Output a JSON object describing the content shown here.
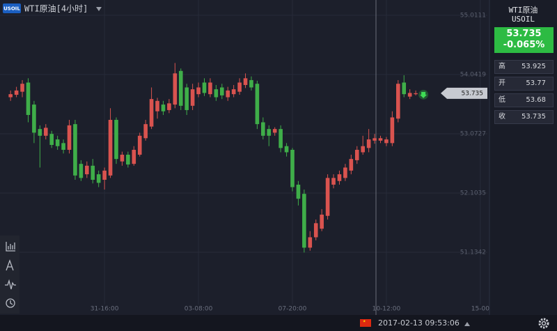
{
  "header": {
    "badge": "USOIL",
    "title": "WTI原油[4小时]"
  },
  "sidebar": {
    "name": "WTI原油",
    "symbol": "USOIL",
    "price": "53.735",
    "change": "-0.065%",
    "rows": [
      [
        "高",
        "53.925"
      ],
      [
        "开",
        "53.77"
      ],
      [
        "低",
        "53.68"
      ],
      [
        "收",
        "53.735"
      ]
    ]
  },
  "status": {
    "datetime": "2017-02-13 09:53:06"
  },
  "chart_data": {
    "type": "candlestick",
    "up_color": "#d9534f",
    "down_color": "#3fae49",
    "current_price": 53.735,
    "xlim": [
      -1.8,
      81.2
    ],
    "xticks": [
      {
        "value": 16,
        "label": "31-16:00"
      },
      {
        "value": 32,
        "label": "03-08:00"
      },
      {
        "value": 48,
        "label": "07-20:00"
      },
      {
        "value": 64,
        "label": "10-12:00"
      },
      {
        "value": 80,
        "label": "15-00"
      }
    ],
    "ylim": [
      50.28,
      55.26
    ],
    "yticks": [
      55.0111,
      54.0419,
      53.0727,
      52.1035,
      51.1342
    ],
    "grid": true,
    "x": [
      0,
      1,
      2,
      3,
      4,
      5,
      6,
      7,
      8,
      9,
      10,
      11,
      12,
      13,
      14,
      15,
      16,
      17,
      18,
      19,
      20,
      21,
      22,
      23,
      24,
      25,
      26,
      27,
      28,
      29,
      30,
      31,
      32,
      33,
      34,
      35,
      36,
      37,
      38,
      39,
      40,
      41,
      42,
      43,
      44,
      45,
      46,
      47,
      48,
      49,
      50,
      51,
      52,
      53,
      54,
      55,
      56,
      57,
      58,
      59,
      60,
      61,
      62,
      63,
      64,
      65,
      66,
      67,
      68,
      69
    ],
    "open": [
      53.67,
      53.71,
      53.76,
      53.91,
      53.55,
      53.15,
      53.04,
      53.07,
      52.98,
      52.92,
      52.81,
      53.23,
      52.58,
      52.41,
      52.55,
      52.41,
      52.32,
      52.39,
      53.3,
      52.62,
      52.73,
      52.58,
      52.73,
      53.0,
      53.19,
      53.44,
      53.55,
      53.46,
      53.55,
      54.1,
      53.83,
      53.53,
      53.72,
      53.91,
      53.72,
      53.8,
      53.83,
      53.67,
      53.72,
      53.76,
      53.87,
      53.95,
      53.89,
      53.26,
      53.15,
      53.09,
      53.15,
      52.87,
      52.81,
      52.24,
      52.09,
      51.21,
      51.38,
      51.52,
      51.73,
      52.24,
      52.3,
      52.35,
      52.47,
      52.64,
      52.77,
      52.84,
      52.96,
      52.96,
      52.92,
      52.92,
      53.32,
      53.91,
      53.68,
      53.72
    ],
    "high": [
      53.78,
      53.84,
      53.95,
      53.98,
      53.61,
      53.21,
      53.23,
      53.12,
      53.04,
      52.98,
      53.3,
      53.3,
      52.64,
      52.62,
      52.66,
      52.47,
      52.52,
      53.49,
      53.34,
      52.78,
      52.78,
      52.87,
      53.09,
      53.3,
      53.83,
      53.66,
      53.61,
      53.64,
      54.23,
      54.14,
      53.89,
      53.89,
      53.91,
      53.98,
      53.98,
      53.87,
      53.89,
      53.84,
      53.87,
      53.98,
      54.06,
      54.01,
      53.94,
      53.34,
      53.21,
      53.18,
      53.21,
      52.92,
      52.84,
      52.3,
      52.16,
      51.48,
      51.67,
      51.84,
      52.41,
      52.41,
      52.47,
      52.58,
      52.73,
      52.87,
      53.04,
      53.15,
      53.07,
      53.04,
      53.02,
      53.44,
      53.95,
      54.03,
      53.8,
      53.78
    ],
    "low": [
      53.61,
      53.67,
      53.67,
      53.26,
      52.92,
      52.52,
      52.98,
      52.84,
      52.81,
      52.75,
      52.75,
      52.32,
      52.3,
      52.35,
      52.26,
      52.2,
      52.16,
      52.35,
      52.58,
      52.55,
      52.52,
      52.55,
      52.7,
      52.96,
      53.15,
      53.32,
      53.38,
      53.41,
      53.49,
      53.46,
      53.38,
      53.46,
      53.67,
      53.69,
      53.67,
      53.61,
      53.64,
      53.61,
      53.67,
      53.71,
      53.82,
      53.78,
      53.15,
      52.98,
      52.87,
      53.04,
      52.77,
      52.7,
      52.13,
      51.9,
      51.13,
      51.16,
      51.33,
      51.48,
      51.67,
      52.18,
      52.24,
      52.3,
      52.41,
      52.58,
      52.73,
      52.77,
      52.91,
      52.92,
      52.87,
      52.87,
      53.26,
      53.67,
      53.64,
      53.7
    ],
    "close": [
      53.72,
      53.78,
      53.89,
      53.38,
      53.09,
      53.04,
      53.17,
      52.89,
      52.87,
      52.81,
      53.21,
      52.39,
      52.35,
      52.55,
      52.32,
      52.27,
      52.47,
      53.3,
      52.66,
      52.73,
      52.57,
      52.81,
      53.04,
      53.23,
      53.64,
      53.61,
      53.44,
      53.57,
      54.06,
      53.53,
      53.46,
      53.8,
      53.83,
      53.74,
      53.91,
      53.67,
      53.7,
      53.78,
      53.8,
      53.91,
      53.98,
      53.83,
      53.23,
      53.04,
      53.04,
      53.15,
      52.84,
      52.77,
      52.2,
      52.01,
      51.21,
      51.38,
      51.61,
      51.75,
      52.35,
      52.35,
      52.41,
      52.52,
      52.66,
      52.81,
      52.87,
      52.98,
      53.0,
      53.0,
      52.98,
      53.34,
      53.89,
      53.72,
      53.74,
      53.735
    ]
  }
}
